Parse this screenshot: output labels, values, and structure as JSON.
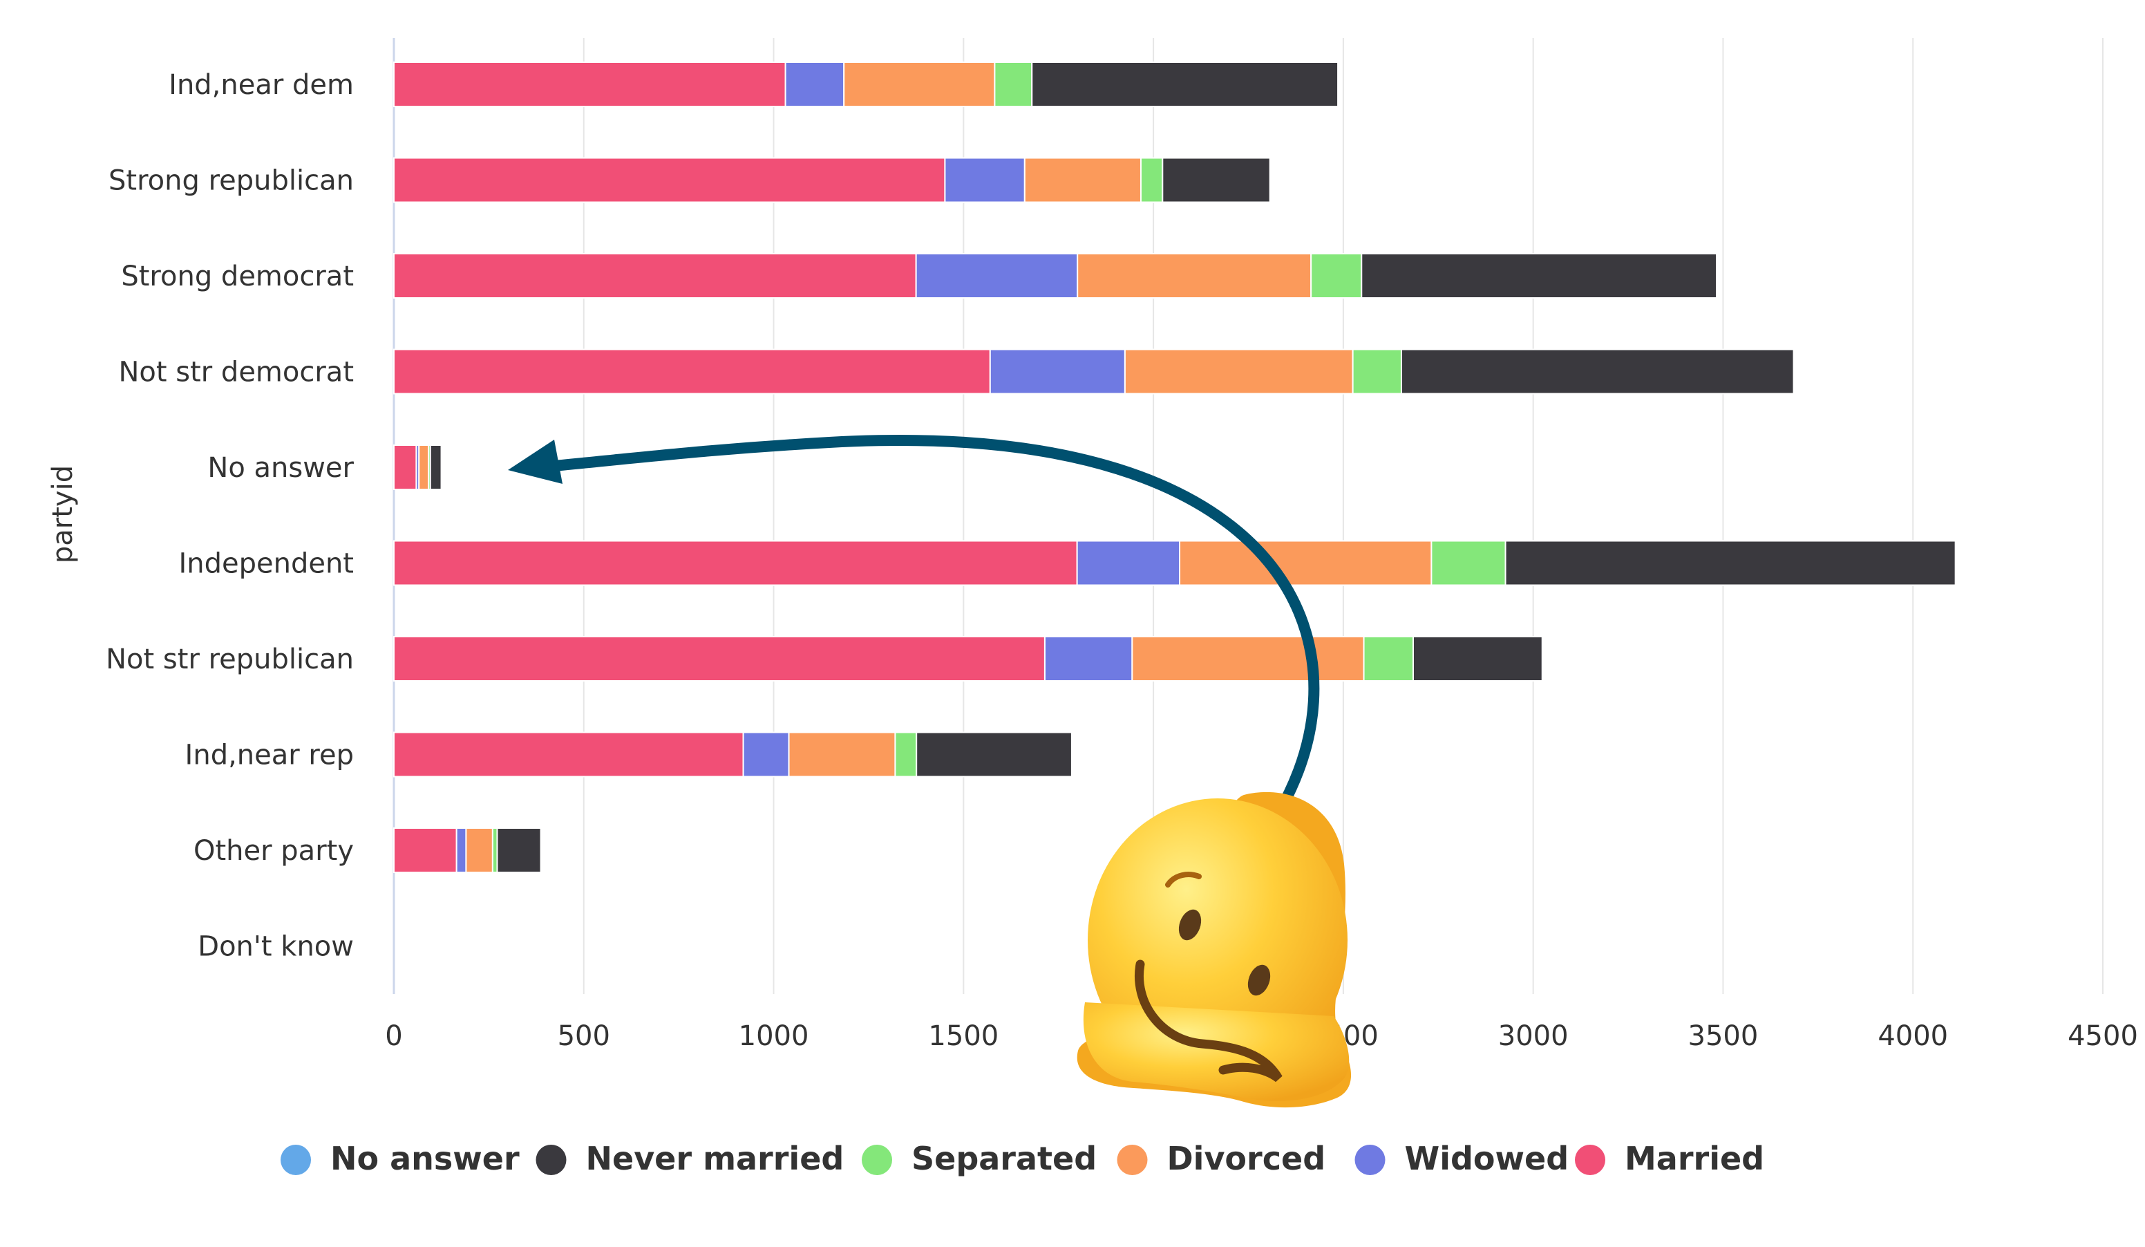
{
  "chart_data": {
    "type": "bar",
    "orientation": "horizontal",
    "stacked": true,
    "ylabel": "partyid",
    "xlabel": "",
    "xlim": [
      0,
      4500
    ],
    "x_ticks": [
      "0",
      "500",
      "1000",
      "1500",
      "2000",
      "2500",
      "3000",
      "3500",
      "4000",
      "4500"
    ],
    "grid": true,
    "legend_position": "bottom",
    "categories": [
      "Ind,near dem",
      "Strong republican",
      "Strong democrat",
      "Not str democrat",
      "No answer",
      "Independent",
      "Not str republican",
      "Ind,near rep",
      "Other party",
      "Don't know"
    ],
    "series": [
      {
        "name": "Married",
        "color": "#f14f76",
        "values": [
          1031,
          1451,
          1375,
          1570,
          59,
          1799,
          1714,
          920,
          165,
          0
        ]
      },
      {
        "name": "Widowed",
        "color": "#6f7ae2",
        "values": [
          154,
          210,
          425,
          355,
          7,
          270,
          230,
          120,
          25,
          0
        ]
      },
      {
        "name": "Divorced",
        "color": "#fb9a5b",
        "values": [
          397,
          306,
          615,
          600,
          25,
          663,
          610,
          280,
          70,
          0
        ]
      },
      {
        "name": "Separated",
        "color": "#84e77a",
        "values": [
          98,
          57,
          133,
          128,
          5,
          195,
          130,
          56,
          12,
          0
        ]
      },
      {
        "name": "Never married",
        "color": "#3a393e",
        "values": [
          806,
          283,
          935,
          1033,
          29,
          1185,
          340,
          409,
          115,
          0
        ]
      },
      {
        "name": "No answer",
        "color": "#63a8e8",
        "values": [
          2,
          1,
          2,
          2,
          1,
          2,
          1,
          1,
          1,
          0
        ]
      }
    ],
    "legend_order": [
      "No answer",
      "Never married",
      "Separated",
      "Divorced",
      "Widowed",
      "Married"
    ]
  },
  "overlay": {
    "arrow_color": "#00506f",
    "emoji_name": "melting-face-emoji"
  }
}
